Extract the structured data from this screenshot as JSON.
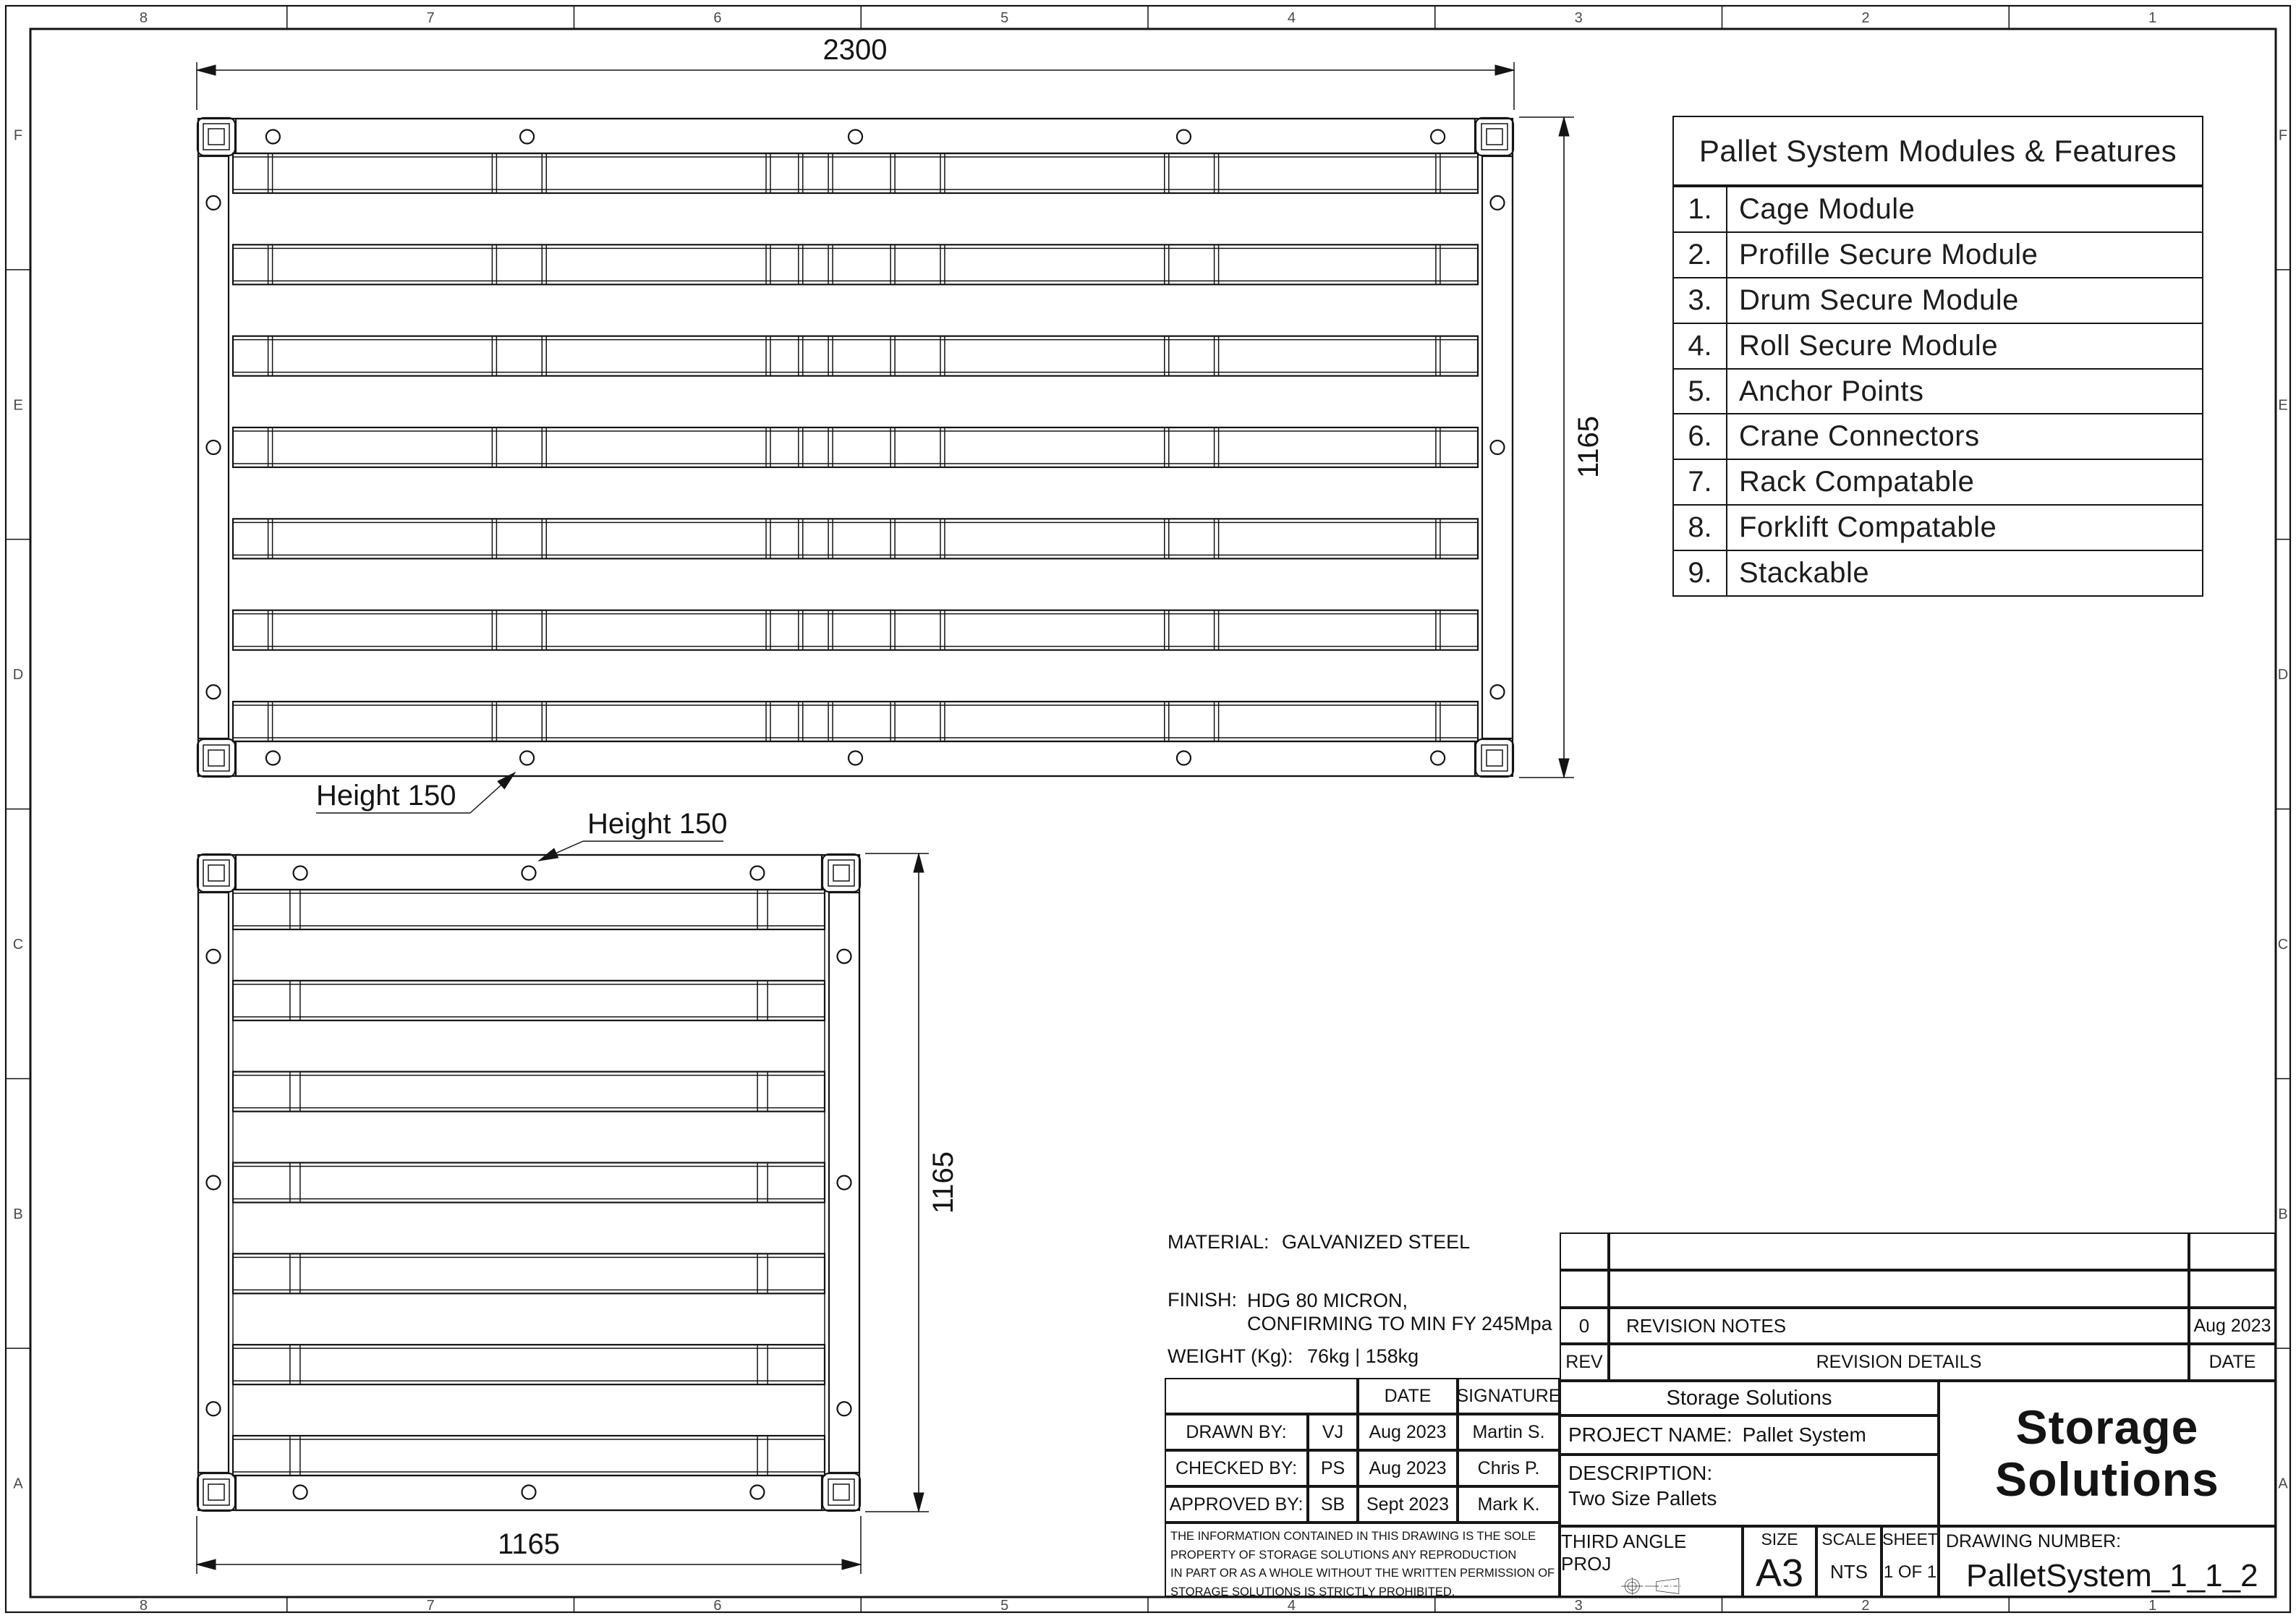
{
  "zones": {
    "columns": [
      "8",
      "7",
      "6",
      "5",
      "4",
      "3",
      "2",
      "1"
    ],
    "rows": [
      "F",
      "E",
      "D",
      "C",
      "B",
      "A"
    ]
  },
  "features": {
    "title": "Pallet System Modules & Features",
    "items": [
      {
        "num": "1.",
        "label": "Cage Module"
      },
      {
        "num": "2.",
        "label": "Profille Secure Module"
      },
      {
        "num": "3.",
        "label": "Drum Secure Module"
      },
      {
        "num": "4.",
        "label": "Roll Secure Module"
      },
      {
        "num": "5.",
        "label": "Anchor Points"
      },
      {
        "num": "6.",
        "label": "Crane Connectors"
      },
      {
        "num": "7.",
        "label": "Rack Compatable"
      },
      {
        "num": "8.",
        "label": "Forklift Compatable"
      },
      {
        "num": "9.",
        "label": "Stackable"
      }
    ]
  },
  "dimensions": {
    "top_view_width": "2300",
    "top_view_height": "1165",
    "front_view_height": "1165",
    "front_view_width": "1165",
    "height_callout_top": "Height 150",
    "height_callout_front": "Height 150"
  },
  "notes": {
    "material_label": "MATERIAL:",
    "material_value": "GALVANIZED STEEL",
    "finish_label": "FINISH:",
    "finish_line1": "HDG 80 MICRON,",
    "finish_line2": "CONFIRMING TO MIN FY 245Mpa",
    "weight_label": "WEIGHT (Kg):",
    "weight_value": "76kg | 158kg"
  },
  "revision": {
    "header": {
      "rev": "REV",
      "details": "REVISION DETAILS",
      "date": "DATE"
    },
    "rows": [
      {
        "rev": "0",
        "details": "REVISION NOTES",
        "date": "Aug 2023"
      }
    ]
  },
  "approval": {
    "date_header": "DATE",
    "signature_header": "SIGNATURE",
    "rows": [
      {
        "role": "DRAWN BY:",
        "initials": "VJ",
        "date": "Aug 2023",
        "signature": "Martin S."
      },
      {
        "role": "CHECKED BY:",
        "initials": "PS",
        "date": "Aug 2023",
        "signature": "Chris P."
      },
      {
        "role": "APPROVED BY:",
        "initials": "SB",
        "date": "Sept 2023",
        "signature": "Mark K."
      }
    ]
  },
  "disclaimer": {
    "line1": "THE INFORMATION CONTAINED IN THIS DRAWING IS THE SOLE",
    "line2": "PROPERTY OF STORAGE SOLUTIONS  ANY REPRODUCTION",
    "line3": "IN PART OR AS A WHOLE WITHOUT THE WRITTEN PERMISSION OF",
    "line4": "STORAGE SOLUTIONS IS STRICTLY PROHIBITED."
  },
  "project": {
    "company": "Storage Solutions",
    "name_label": "PROJECT NAME:",
    "name_value": "Pallet System",
    "description_label": "DESCRIPTION:",
    "description_value": "Two Size Pallets"
  },
  "titleblock": {
    "projection": "THIRD ANGLE PROJ",
    "size_label": "SIZE",
    "size_value": "A3",
    "scale_label": "SCALE",
    "scale_value": "NTS",
    "sheet_label": "SHEET",
    "sheet_value": "1 OF 1",
    "drawing_number_label": "DRAWING NUMBER:",
    "drawing_number_value": "PalletSystem_1_1_2"
  },
  "logo": {
    "line1": "Storage",
    "line2": "Solutions"
  }
}
